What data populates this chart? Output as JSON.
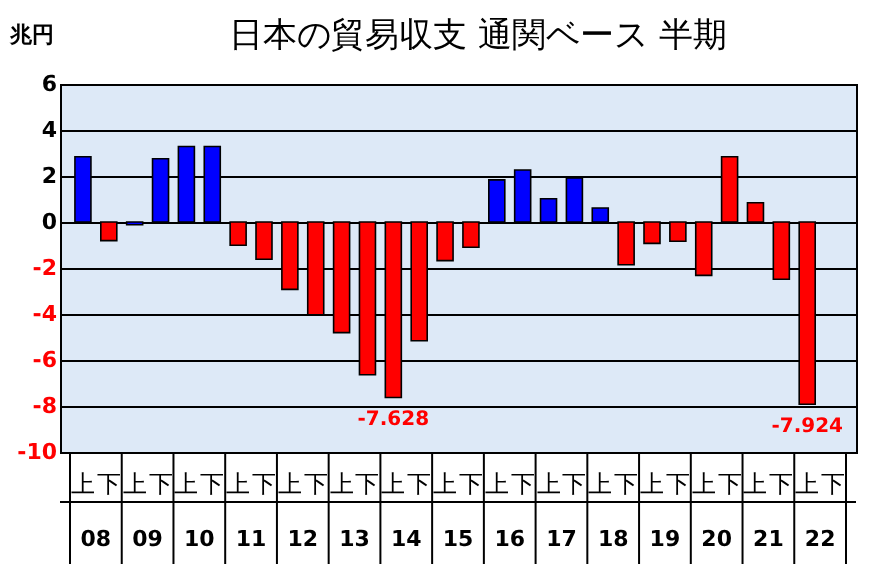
{
  "chart_data": {
    "type": "bar",
    "title": "日本の貿易収支  通関ベース 半期",
    "ylabel": "兆円",
    "categories": [
      "上",
      "下",
      "上",
      "下",
      "上",
      "下",
      "上",
      "下",
      "上",
      "下",
      "上",
      "下",
      "上",
      "下",
      "上",
      "下",
      "上",
      "下",
      "上",
      "下",
      "上",
      "下",
      "上",
      "下",
      "上",
      "下",
      "上",
      "下",
      "上",
      "下"
    ],
    "values": [
      2.84,
      -0.81,
      -0.12,
      2.75,
      3.28,
      3.28,
      -1.01,
      -1.62,
      -2.93,
      -4.03,
      -4.81,
      -6.64,
      -7.628,
      -5.16,
      -1.68,
      -1.1,
      1.83,
      2.26,
      1.01,
      1.91,
      0.61,
      -1.86,
      -0.93,
      -0.84,
      -2.32,
      2.84,
      0.84,
      -2.49,
      -7.924,
      null
    ],
    "colors": [
      "#0000ff",
      "#ff0000",
      "#0000ff",
      "#0000ff",
      "#0000ff",
      "#0000ff",
      "#ff0000",
      "#ff0000",
      "#ff0000",
      "#ff0000",
      "#ff0000",
      "#ff0000",
      "#ff0000",
      "#ff0000",
      "#ff0000",
      "#ff0000",
      "#0000ff",
      "#0000ff",
      "#0000ff",
      "#0000ff",
      "#0000ff",
      "#ff0000",
      "#ff0000",
      "#ff0000",
      "#ff0000",
      "#ff0000",
      "#ff0000",
      "#ff0000",
      "#ff0000",
      "#ff0000"
    ],
    "value_labels": [
      null,
      null,
      null,
      null,
      null,
      null,
      null,
      null,
      null,
      null,
      null,
      null,
      "-7.628",
      null,
      null,
      null,
      null,
      null,
      null,
      null,
      null,
      null,
      null,
      null,
      null,
      null,
      null,
      null,
      "-7.924",
      null
    ],
    "annotations": [
      "08",
      "09",
      "10",
      "11",
      "12",
      "13",
      "14",
      "15",
      "16",
      "17",
      "18",
      "19",
      "20",
      "21",
      "22"
    ],
    "ylim": [
      -10,
      6
    ],
    "yticks": [
      -10,
      -8,
      -6,
      -4,
      -2,
      0,
      2,
      4,
      6
    ],
    "grid": "y"
  }
}
